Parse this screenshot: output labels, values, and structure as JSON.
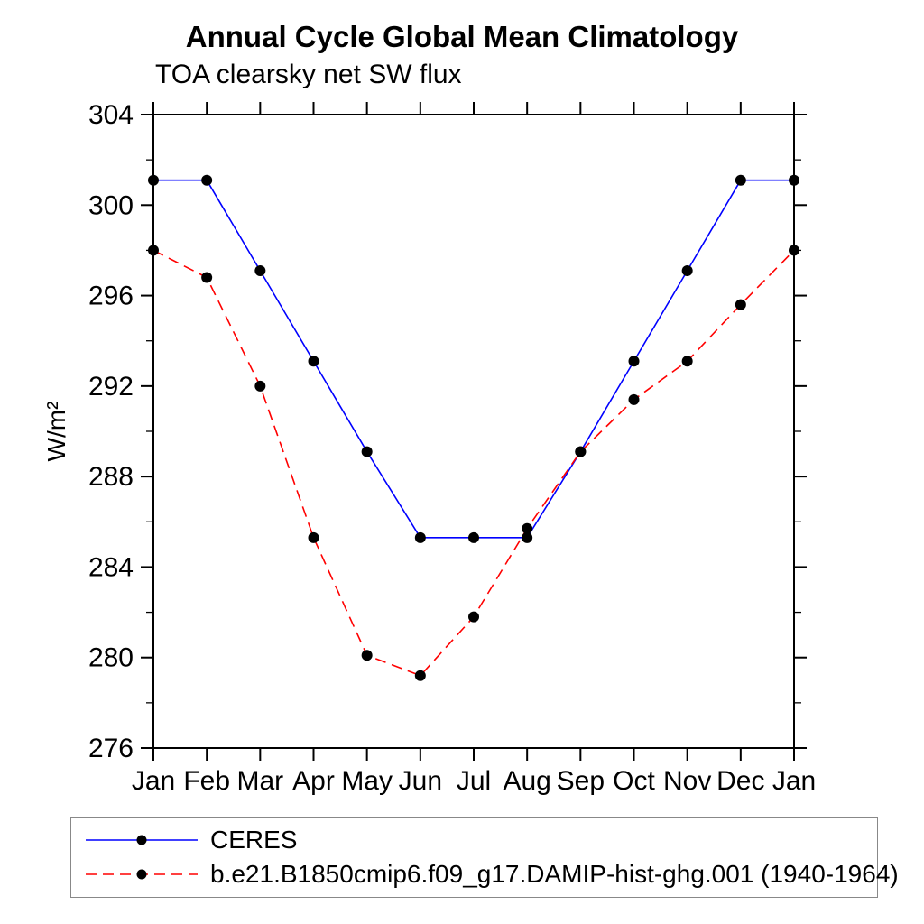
{
  "chart_data": {
    "type": "line",
    "title": "Annual Cycle Global Mean Climatology",
    "subtitle": "TOA clearsky net SW flux",
    "xlabel": "",
    "ylabel": "W/m²",
    "ylim": [
      276,
      304
    ],
    "ytick_major": 4,
    "ytick_minor": 2,
    "grid": false,
    "legend_position": "bottom-left-box",
    "marker_color": "#000000",
    "axis_color": "#000000",
    "categories": [
      "Jan",
      "Feb",
      "Mar",
      "Apr",
      "May",
      "Jun",
      "Jul",
      "Aug",
      "Sep",
      "Oct",
      "Nov",
      "Dec",
      "Jan"
    ],
    "series": [
      {
        "name": "CERES",
        "color": "#0000ff",
        "style": "solid",
        "marker": "black-dot",
        "values": [
          301.1,
          301.1,
          297.1,
          293.1,
          289.1,
          285.3,
          285.3,
          285.3,
          289.1,
          293.1,
          297.1,
          301.1,
          301.1
        ]
      },
      {
        "name": "b.e21.B1850cmip6.f09_g17.DAMIP-hist-ghg.001 (1940-1964)",
        "color": "#ff0000",
        "style": "dashed",
        "marker": "black-dot",
        "values": [
          298.0,
          296.8,
          292.0,
          285.3,
          280.1,
          279.2,
          281.8,
          285.7,
          289.1,
          291.4,
          293.1,
          295.6,
          298.0
        ]
      }
    ]
  }
}
